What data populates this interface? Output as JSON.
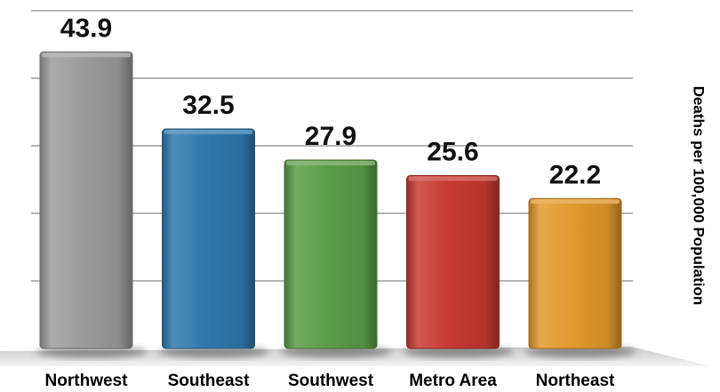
{
  "chart_data": {
    "type": "bar",
    "title": "",
    "xlabel": "",
    "ylabel": "Deaths per 100,000 Population",
    "categories": [
      "Northwest",
      "Southeast",
      "Southwest",
      "Metro Area",
      "Northeast"
    ],
    "values": [
      43.9,
      32.5,
      27.9,
      25.6,
      22.2
    ],
    "data_labels": [
      "43.9",
      "32.5",
      "27.9",
      "25.6",
      "22.2"
    ],
    "ylim": [
      0,
      50
    ],
    "grid": true,
    "legend": "none",
    "colors": [
      "#9c9c9c",
      "#2f79ad",
      "#5c9d48",
      "#c73a32",
      "#e19a2d"
    ]
  }
}
